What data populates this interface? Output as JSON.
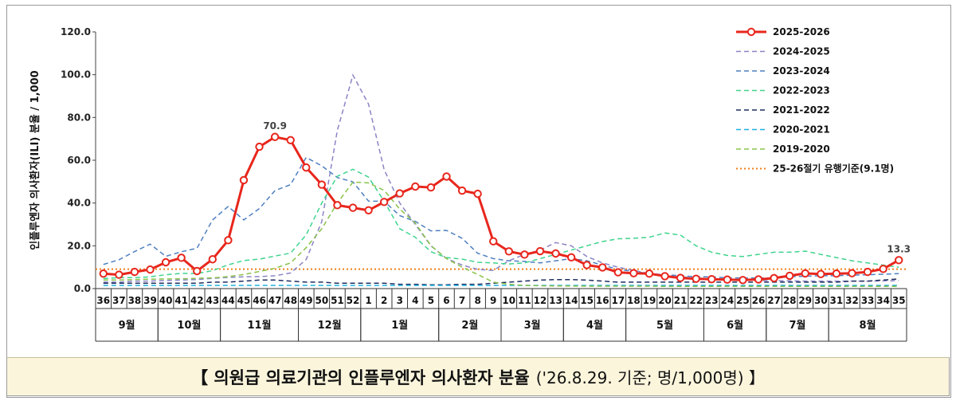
{
  "caption": {
    "title": "【 의원급 의료기관의 인플루엔자 의사환자 분율",
    "note": "('26.8.29. 기준; 명/1,000명) 】"
  },
  "chart_data": {
    "type": "line",
    "ylabel": "인플루엔자 의사환자(ILI) 분율 / 1,000",
    "ylim": [
      0,
      120
    ],
    "yticks": [
      "0.0",
      "20.0",
      "40.0",
      "60.0",
      "80.0",
      "100.0",
      "120.0"
    ],
    "x": [
      "36",
      "37",
      "38",
      "39",
      "40",
      "41",
      "42",
      "43",
      "44",
      "45",
      "46",
      "47",
      "48",
      "49",
      "50",
      "51",
      "52",
      "1",
      "2",
      "3",
      "4",
      "5",
      "6",
      "7",
      "8",
      "9",
      "10",
      "11",
      "12",
      "13",
      "14",
      "15",
      "16",
      "17",
      "18",
      "19",
      "20",
      "21",
      "22",
      "23",
      "24",
      "25",
      "26",
      "27",
      "28",
      "29",
      "30",
      "31",
      "32",
      "33",
      "34",
      "35"
    ],
    "months": [
      {
        "label": "9월",
        "start": 0,
        "end": 4
      },
      {
        "label": "10월",
        "start": 4,
        "end": 8
      },
      {
        "label": "11월",
        "start": 8,
        "end": 13
      },
      {
        "label": "12월",
        "start": 13,
        "end": 17
      },
      {
        "label": "1월",
        "start": 17,
        "end": 22
      },
      {
        "label": "2월",
        "start": 22,
        "end": 26
      },
      {
        "label": "3월",
        "start": 26,
        "end": 30
      },
      {
        "label": "4월",
        "start": 30,
        "end": 34
      },
      {
        "label": "5월",
        "start": 34,
        "end": 39
      },
      {
        "label": "6월",
        "start": 39,
        "end": 43
      },
      {
        "label": "7월",
        "start": 43,
        "end": 47
      },
      {
        "label": "8월",
        "start": 47,
        "end": 52
      }
    ],
    "series": [
      {
        "name": "2025-2026",
        "color": "#e8261c",
        "style": "bold-marker",
        "values": [
          7.0,
          6.5,
          7.8,
          8.9,
          12.3,
          14.4,
          8.2,
          13.7,
          22.6,
          50.7,
          66.3,
          70.9,
          69.4,
          56.6,
          48.6,
          39.0,
          37.8,
          36.6,
          40.5,
          44.5,
          47.7,
          47.3,
          52.4,
          45.8,
          44.3,
          22.1,
          17.4,
          15.9,
          17.5,
          16.4,
          14.6,
          11.0,
          9.9,
          7.6,
          7.2,
          7.0,
          5.8,
          5.0,
          4.6,
          4.4,
          4.2,
          4.0,
          4.3,
          4.9,
          6.0,
          7.1,
          6.8,
          7.0,
          7.2,
          7.8,
          9.2,
          13.3
        ]
      },
      {
        "name": "2024-2025",
        "color": "#8a85c4",
        "style": "dash",
        "values": [
          3.0,
          3.0,
          3.5,
          3.5,
          3.8,
          4.0,
          4.2,
          4.8,
          5.2,
          5.5,
          5.6,
          6.0,
          7.3,
          13.6,
          31.3,
          73.9,
          99.8,
          86.2,
          55.6,
          40.0,
          30.0,
          20.0,
          14.0,
          11.0,
          9.0,
          8.5,
          13.0,
          16.0,
          18.0,
          21.5,
          20.0,
          15.0,
          12.0,
          10.0,
          8.5,
          7.0,
          6.0,
          5.5,
          5.0,
          4.5,
          4.2,
          4.0,
          3.8,
          3.7,
          3.6,
          3.5,
          3.5,
          3.5,
          3.5,
          3.5,
          3.6,
          3.7
        ]
      },
      {
        "name": "2023-2024",
        "color": "#4f7fc0",
        "style": "dash",
        "values": [
          11.3,
          13.5,
          17.3,
          20.8,
          15.1,
          17.2,
          18.9,
          32.1,
          38.4,
          32.1,
          37.4,
          45.8,
          48.6,
          61.3,
          57.4,
          51.9,
          49.9,
          40.9,
          40.8,
          34.1,
          31.4,
          27.0,
          27.2,
          23.5,
          16.5,
          14.0,
          13.0,
          12.7,
          12.0,
          13.0,
          14.0,
          13.0,
          11.0,
          9.0,
          8.0,
          7.0,
          6.5,
          6.0,
          5.5,
          5.5,
          5.0,
          5.0,
          5.0,
          5.0,
          5.5,
          5.8,
          6.0,
          6.0,
          6.3,
          6.5,
          6.7,
          7.0
        ]
      },
      {
        "name": "2022-2023",
        "color": "#3fd48e",
        "style": "dash",
        "values": [
          4.7,
          5.1,
          5.1,
          5.5,
          6.5,
          7.1,
          7.0,
          8.4,
          11.1,
          13.1,
          13.8,
          15.2,
          16.6,
          25.1,
          40.0,
          52.5,
          55.8,
          52.1,
          40.8,
          28.0,
          24.0,
          17.2,
          14.5,
          13.8,
          12.3,
          12.0,
          11.5,
          12.0,
          14.0,
          16.0,
          18.0,
          20.0,
          22.0,
          23.3,
          23.5,
          24.0,
          26.0,
          25.0,
          20.0,
          17.0,
          15.5,
          15.0,
          16.0,
          17.0,
          17.0,
          17.5,
          16.0,
          14.5,
          13.0,
          12.0,
          11.0,
          10.0
        ]
      },
      {
        "name": "2021-2022",
        "color": "#1f2d5e",
        "style": "dash",
        "values": [
          2.5,
          2.5,
          2.5,
          2.5,
          2.5,
          2.5,
          2.5,
          3.0,
          3.0,
          3.5,
          4.0,
          4.0,
          3.5,
          3.0,
          3.0,
          2.5,
          2.5,
          2.5,
          2.5,
          2.0,
          2.0,
          1.8,
          1.8,
          2.0,
          2.0,
          2.5,
          3.0,
          3.5,
          4.0,
          4.2,
          4.2,
          4.0,
          3.5,
          3.0,
          3.0,
          3.0,
          3.0,
          3.0,
          3.0,
          3.0,
          3.0,
          3.0,
          3.0,
          3.0,
          3.0,
          3.0,
          3.0,
          3.0,
          3.5,
          3.5,
          4.0,
          4.5
        ]
      },
      {
        "name": "2020-2021",
        "color": "#1fb0e0",
        "style": "dash",
        "values": [
          1.5,
          1.5,
          1.5,
          1.5,
          1.5,
          1.5,
          1.5,
          1.5,
          1.5,
          1.5,
          1.5,
          1.5,
          1.5,
          1.5,
          1.5,
          1.5,
          1.5,
          1.5,
          1.5,
          1.5,
          1.5,
          1.5,
          1.5,
          1.5,
          1.5,
          1.5,
          1.5,
          1.5,
          1.5,
          1.5,
          1.5,
          1.5,
          1.5,
          1.5,
          1.5,
          1.5,
          1.5,
          1.5,
          1.5,
          1.5,
          1.5,
          1.5,
          1.5,
          1.5,
          1.5,
          1.5,
          1.5,
          1.5,
          1.5,
          1.5,
          1.5,
          1.5
        ]
      },
      {
        "name": "2019-2020",
        "color": "#8ac24a",
        "style": "dash",
        "values": [
          4.0,
          4.0,
          4.2,
          4.4,
          4.5,
          4.6,
          4.8,
          5.0,
          5.6,
          6.6,
          8.0,
          9.5,
          12.0,
          19.1,
          28.0,
          40.0,
          49.8,
          49.4,
          45.9,
          37.2,
          30.6,
          20.1,
          14.0,
          10.0,
          6.6,
          3.0,
          2.0,
          1.5,
          1.3,
          1.2,
          1.2,
          1.1,
          1.1,
          1.1,
          1.1,
          1.1,
          1.0,
          1.0,
          1.0,
          1.0,
          1.0,
          1.0,
          1.0,
          1.0,
          1.0,
          1.0,
          1.0,
          1.0,
          1.0,
          1.0,
          1.0,
          1.0
        ]
      }
    ],
    "threshold": {
      "name": "25-26절기 유행기준(9.1명)",
      "value": 9.1,
      "color": "#ef7f1a"
    },
    "annotations": [
      {
        "index": 11,
        "text": "70.9"
      },
      {
        "index": 51,
        "text": "13.3"
      }
    ],
    "legend_position": "top-right"
  }
}
